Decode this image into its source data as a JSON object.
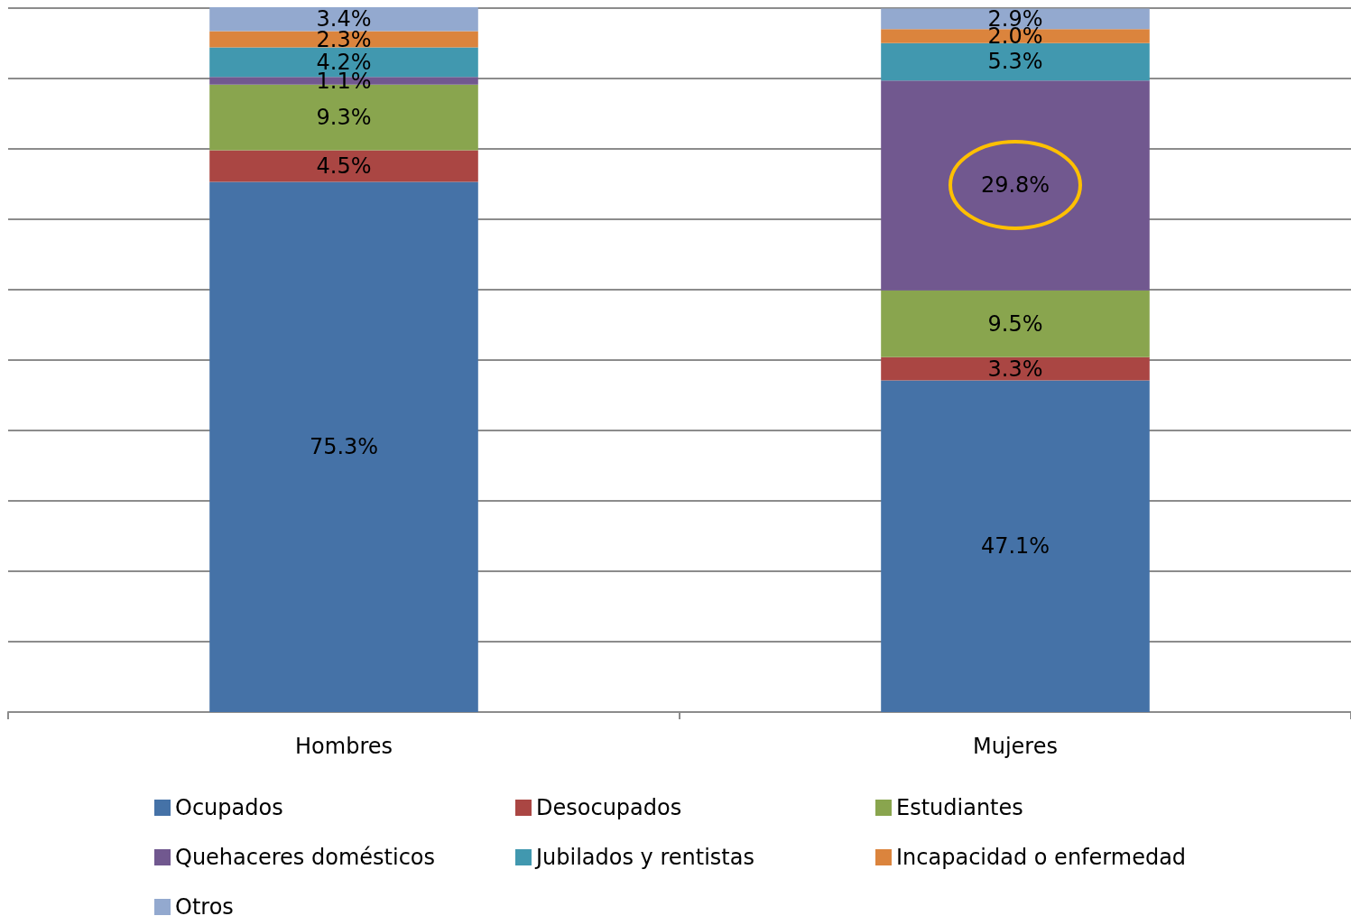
{
  "chart_data": {
    "type": "bar",
    "stacked": true,
    "categories": [
      "Hombres",
      "Mujeres"
    ],
    "series": [
      {
        "name": "Ocupados",
        "color": "#4572a7",
        "values": [
          75.3,
          47.1
        ],
        "value_labels": [
          "75.3%",
          "47.1%"
        ]
      },
      {
        "name": "Desocupados",
        "color": "#aa4643",
        "values": [
          4.5,
          3.3
        ],
        "value_labels": [
          "4.5%",
          "3.3%"
        ]
      },
      {
        "name": "Estudiantes",
        "color": "#89a54e",
        "values": [
          9.3,
          9.5
        ],
        "value_labels": [
          "9.3%",
          "9.5%"
        ]
      },
      {
        "name": "Quehaceres domésticos",
        "color": "#71588f",
        "values": [
          1.1,
          29.8
        ],
        "value_labels": [
          "1.1%",
          "29.8%"
        ]
      },
      {
        "name": "Jubilados y rentistas",
        "color": "#4198af",
        "values": [
          4.2,
          5.3
        ],
        "value_labels": [
          "4.2%",
          "5.3%"
        ]
      },
      {
        "name": "Incapacidad o enfermedad",
        "color": "#db843d",
        "values": [
          2.3,
          2.0
        ],
        "value_labels": [
          "2.3%",
          "2.0%"
        ]
      },
      {
        "name": "Otros",
        "color": "#93a9cf",
        "values": [
          3.4,
          2.9
        ],
        "value_labels": [
          "3.4%",
          "2.9%"
        ]
      }
    ],
    "ylim": [
      0,
      100.1
    ],
    "yticks": [
      {
        "value": 0,
        "label": null
      },
      {
        "value": 10,
        "label": null
      },
      {
        "value": 20,
        "label": null
      },
      {
        "value": 30,
        "label": null
      },
      {
        "value": 40,
        "label": null
      },
      {
        "value": 50,
        "label": null
      },
      {
        "value": 60,
        "label": null
      },
      {
        "value": 70,
        "label": null
      },
      {
        "value": 80,
        "label": null
      },
      {
        "value": 90,
        "label": null
      },
      {
        "value": 100,
        "label": null
      }
    ],
    "grid": "y",
    "legend": "bottom",
    "tick_labels": "x"
  }
}
